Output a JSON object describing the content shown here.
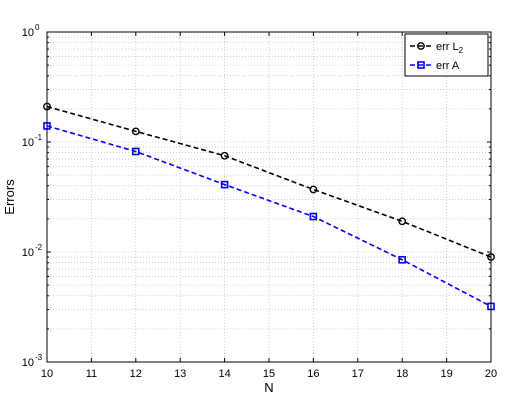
{
  "chart_data": {
    "type": "line",
    "title": "",
    "xlabel": "N",
    "ylabel": "Errors",
    "xlim": [
      10,
      20
    ],
    "ylim": [
      0.001,
      1
    ],
    "yscale": "log",
    "grid": true,
    "legend_position": "top-right",
    "x_ticks": [
      {
        "value": 10,
        "label": "10"
      },
      {
        "value": 11,
        "label": "11"
      },
      {
        "value": 12,
        "label": "12"
      },
      {
        "value": 13,
        "label": "13"
      },
      {
        "value": 14,
        "label": "14"
      },
      {
        "value": 15,
        "label": "15"
      },
      {
        "value": 16,
        "label": "16"
      },
      {
        "value": 17,
        "label": "17"
      },
      {
        "value": 18,
        "label": "18"
      },
      {
        "value": 19,
        "label": "19"
      },
      {
        "value": 20,
        "label": "20"
      }
    ],
    "y_ticks": [
      {
        "value": 0.001,
        "base": "10",
        "exp": "-3"
      },
      {
        "value": 0.01,
        "base": "10",
        "exp": "-2"
      },
      {
        "value": 0.1,
        "base": "10",
        "exp": "-1"
      },
      {
        "value": 1,
        "base": "10",
        "exp": "0"
      }
    ],
    "series": [
      {
        "name": "err L",
        "name_subscript": "2",
        "color": "#000000",
        "line_style": "dashed",
        "marker": "circle",
        "x": [
          10,
          12,
          14,
          16,
          18,
          20
        ],
        "y": [
          0.21,
          0.125,
          0.075,
          0.037,
          0.019,
          0.009
        ]
      },
      {
        "name": "err A",
        "name_subscript": "",
        "color": "#0000ff",
        "line_style": "dashed",
        "marker": "square",
        "x": [
          10,
          12,
          14,
          16,
          18,
          20
        ],
        "y": [
          0.14,
          0.082,
          0.041,
          0.021,
          0.0085,
          0.0032
        ]
      }
    ]
  }
}
